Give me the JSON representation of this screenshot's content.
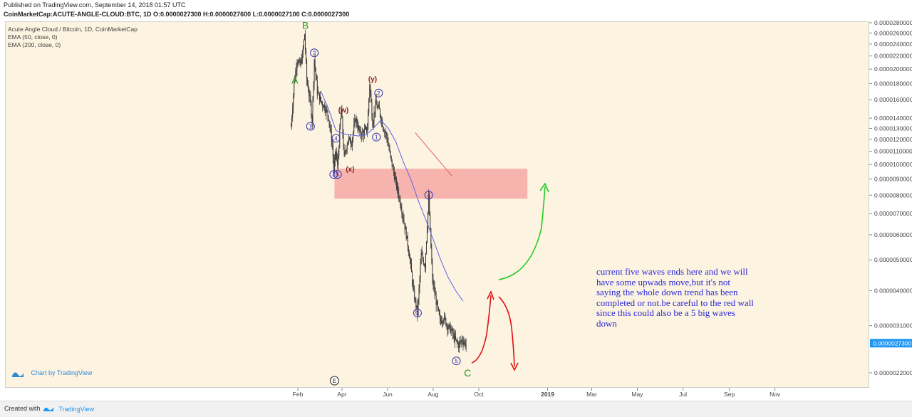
{
  "header": {
    "published": "Published on TradingView.com, September 14, 2018 01:57 UTC",
    "symbol_line": "CoinMarketCap:ACUTE-ANGLE-CLOUD:BTC, 1D O:0.0000027300 H:0.0000027600 L:0.0000027100 C:0.0000027300"
  },
  "legend": {
    "title": "Acute Angle Cloud / Bitcoin, 1D, CoinMarketCap",
    "ema50": "EMA (50, close, 0)",
    "ema200": "EMA (200, close, 0)"
  },
  "badge": {
    "label": "Chart by TradingView",
    "icon": "tradingview-logo-icon"
  },
  "footer": {
    "created": "Created with",
    "brand": "TradingView"
  },
  "note": "current five waves ends here and we will have some upwads move,but it's not saying the whole down trend has been completed or not.be careful to the red wall since this could also be a 5 big waves down",
  "colors": {
    "background": "#fdf3e1",
    "candle": "#3a3a3a",
    "ema": "#5b63e6",
    "zone": "#f6a8a4",
    "wave_major": "#22a022",
    "wave_minor": "#3333aa",
    "wave_corrective": "#8b1a1a",
    "arrow_up": "#22cc22",
    "arrow_red": "#dd1111",
    "last_price": "#2196f3"
  },
  "chart_data": {
    "type": "candlestick",
    "series_name": "ACUTE-ANGLE-CLOUD:BTC",
    "y_axis": {
      "scale": "log",
      "ticks": [
        "0.0000280000",
        "0.0000260000",
        "0.0000240000",
        "0.0000220000",
        "0.0000200000",
        "0.0000180000",
        "0.0000160000",
        "0.0000140000",
        "0.0000130000",
        "0.0000120000",
        "0.0000110000",
        "0.0000100000",
        "0.0000090000",
        "0.0000080000",
        "0.0000070000",
        "0.0000060000",
        "0.0000050000",
        "0.0000040000",
        "0.0000031000",
        "0.0000022000"
      ],
      "last_price": "0.0000027300"
    },
    "x_axis": {
      "ticks": [
        "Feb",
        "Apr",
        "Jun",
        "Aug",
        "Oct",
        "2019",
        "Mar",
        "May",
        "Jul",
        "Sep",
        "Nov"
      ],
      "event_marker": "E"
    },
    "price_path": [
      [
        "2018-01-23",
        1.32e-05
      ],
      [
        "2018-01-27",
        1.8e-05
      ],
      [
        "2018-01-31",
        2.15e-05
      ],
      [
        "2018-02-04",
        2.05e-05
      ],
      [
        "2018-02-07",
        2.2e-05
      ],
      [
        "2018-02-10",
        2.58e-05
      ],
      [
        "2018-02-13",
        1.85e-05
      ],
      [
        "2018-02-18",
        1.55e-05
      ],
      [
        "2018-02-20",
        1.38e-05
      ],
      [
        "2018-02-23",
        2.15e-05
      ],
      [
        "2018-02-27",
        1.7e-05
      ],
      [
        "2018-03-04",
        1.58e-05
      ],
      [
        "2018-03-09",
        1.52e-05
      ],
      [
        "2018-03-14",
        1.42e-05
      ],
      [
        "2018-03-19",
        1.15e-05
      ],
      [
        "2018-03-21",
        9.7e-06
      ],
      [
        "2018-03-24",
        1.1e-05
      ],
      [
        "2018-03-26",
        9.8e-06
      ],
      [
        "2018-03-31",
        1.5e-05
      ],
      [
        "2018-04-04",
        1.05e-05
      ],
      [
        "2018-04-09",
        1.2e-05
      ],
      [
        "2018-04-14",
        1.18e-05
      ],
      [
        "2018-04-19",
        1.4e-05
      ],
      [
        "2018-04-25",
        1.25e-05
      ],
      [
        "2018-04-30",
        1.26e-05
      ],
      [
        "2018-05-05",
        1.3e-05
      ],
      [
        "2018-05-08",
        1.8e-05
      ],
      [
        "2018-05-12",
        1.35e-05
      ],
      [
        "2018-05-16",
        1.55e-05
      ],
      [
        "2018-05-21",
        1.48e-05
      ],
      [
        "2018-05-26",
        1.32e-05
      ],
      [
        "2018-05-31",
        1.22e-05
      ],
      [
        "2018-06-05",
        1.05e-05
      ],
      [
        "2018-06-11",
        9e-06
      ],
      [
        "2018-06-16",
        8e-06
      ],
      [
        "2018-06-21",
        7e-06
      ],
      [
        "2018-06-26",
        6e-06
      ],
      [
        "2018-07-01",
        5e-06
      ],
      [
        "2018-07-06",
        3.9e-06
      ],
      [
        "2018-07-11",
        3.4e-06
      ],
      [
        "2018-07-16",
        5.2e-06
      ],
      [
        "2018-07-21",
        4.8e-06
      ],
      [
        "2018-07-26",
        7.8e-06
      ],
      [
        "2018-07-31",
        4.3e-06
      ],
      [
        "2018-08-05",
        3.7e-06
      ],
      [
        "2018-08-10",
        3.2e-06
      ],
      [
        "2018-08-15",
        3.3e-06
      ],
      [
        "2018-08-20",
        3.1e-06
      ],
      [
        "2018-08-25",
        3e-06
      ],
      [
        "2018-08-30",
        2.8e-06
      ],
      [
        "2018-09-04",
        2.7e-06
      ],
      [
        "2018-09-09",
        2.8e-06
      ],
      [
        "2018-09-14",
        2.7e-06
      ]
    ],
    "ema_path": [
      [
        "2018-03-04",
        1.7e-05
      ],
      [
        "2018-03-14",
        1.5e-05
      ],
      [
        "2018-03-24",
        1.28e-05
      ],
      [
        "2018-04-03",
        1.25e-05
      ],
      [
        "2018-04-13",
        1.24e-05
      ],
      [
        "2018-04-23",
        1.23e-05
      ],
      [
        "2018-05-03",
        1.24e-05
      ],
      [
        "2018-05-13",
        1.3e-05
      ],
      [
        "2018-05-23",
        1.38e-05
      ],
      [
        "2018-06-02",
        1.3e-05
      ],
      [
        "2018-06-12",
        1.18e-05
      ],
      [
        "2018-06-22",
        1.02e-05
      ],
      [
        "2018-07-02",
        9e-06
      ],
      [
        "2018-07-12",
        7.7e-06
      ],
      [
        "2018-07-22",
        6.7e-06
      ],
      [
        "2018-08-01",
        5.8e-06
      ],
      [
        "2018-08-11",
        5e-06
      ],
      [
        "2018-08-21",
        4.4e-06
      ],
      [
        "2018-08-31",
        4e-06
      ],
      [
        "2018-09-10",
        3.7e-06
      ]
    ],
    "annotations": {
      "major_waves": [
        "A",
        "B",
        "C"
      ],
      "impulse_waves_1": [
        "1",
        "2",
        "3",
        "4",
        "5"
      ],
      "corrective_labels": [
        "(w)",
        "(x)",
        "(y)"
      ],
      "impulse_waves_2": [
        "1",
        "2",
        "3",
        "4",
        "5"
      ],
      "zone": {
        "from": 7.8e-06,
        "to": 9.7e-06,
        "start": "2018-03-22",
        "end": "2018-12-05"
      }
    }
  }
}
